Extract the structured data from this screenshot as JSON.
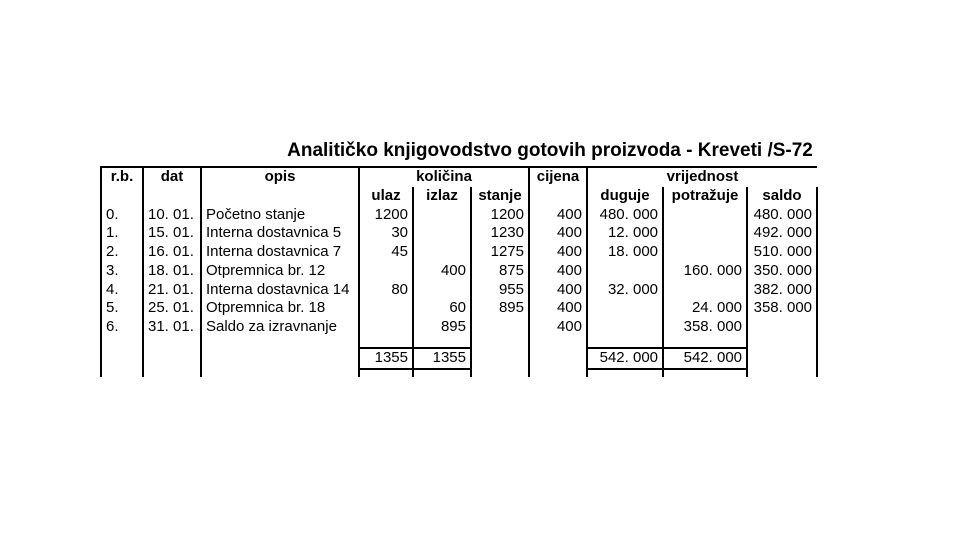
{
  "title": "Analitičko knjigovodstvo gotovih proizvoda - Kreveti /S-72",
  "headers": {
    "rb": "r.b.",
    "dat": "dat",
    "opis": "opis",
    "kolicina": "količina",
    "ulaz": "ulaz",
    "izlaz": "izlaz",
    "stanje": "stanje",
    "cijena": "cijena",
    "vrijednost": "vrijednost",
    "duguje": "duguje",
    "potrazuje": "potražuje",
    "saldo": "saldo"
  },
  "rows": [
    {
      "rb": "0.",
      "dat": "10. 01.",
      "opis": "Početno stanje",
      "ulaz": "1200",
      "izlaz": "",
      "stanje": "1200",
      "cijena": "400",
      "duguje": "480. 000",
      "potrazuje": "",
      "saldo": "480. 000"
    },
    {
      "rb": "1.",
      "dat": "15. 01.",
      "opis": "Interna dostavnica 5",
      "ulaz": "30",
      "izlaz": "",
      "stanje": "1230",
      "cijena": "400",
      "duguje": "12. 000",
      "potrazuje": "",
      "saldo": "492. 000"
    },
    {
      "rb": "2.",
      "dat": "16. 01.",
      "opis": "Interna dostavnica 7",
      "ulaz": "45",
      "izlaz": "",
      "stanje": "1275",
      "cijena": "400",
      "duguje": "18. 000",
      "potrazuje": "",
      "saldo": "510. 000"
    },
    {
      "rb": "3.",
      "dat": "18. 01.",
      "opis": "Otpremnica br. 12",
      "ulaz": "",
      "izlaz": "400",
      "stanje": "875",
      "cijena": "400",
      "duguje": "",
      "potrazuje": "160. 000",
      "saldo": "350. 000"
    },
    {
      "rb": "4.",
      "dat": "21. 01.",
      "opis": "Interna dostavnica 14",
      "ulaz": "80",
      "izlaz": "",
      "stanje": "955",
      "cijena": "400",
      "duguje": "32. 000",
      "potrazuje": "",
      "saldo": "382. 000"
    },
    {
      "rb": "5.",
      "dat": "25. 01.",
      "opis": "Otpremnica br. 18",
      "ulaz": "",
      "izlaz": "60",
      "stanje": "895",
      "cijena": "400",
      "duguje": "",
      "potrazuje": "24. 000",
      "saldo": "358. 000"
    },
    {
      "rb": "6.",
      "dat": "31. 01.",
      "opis": "Saldo za izravnanje",
      "ulaz": "",
      "izlaz": "895",
      "stanje": "",
      "cijena": "400",
      "duguje": "",
      "potrazuje": "358. 000",
      "saldo": ""
    }
  ],
  "totals": {
    "ulaz": "1355",
    "izlaz": "1355",
    "duguje": "542. 000",
    "potrazuje": "542. 000"
  },
  "style": {
    "background_color": "#ffffff",
    "border_color": "#000000",
    "font_family": "Arial",
    "title_fontsize": 19,
    "body_fontsize": 15
  }
}
